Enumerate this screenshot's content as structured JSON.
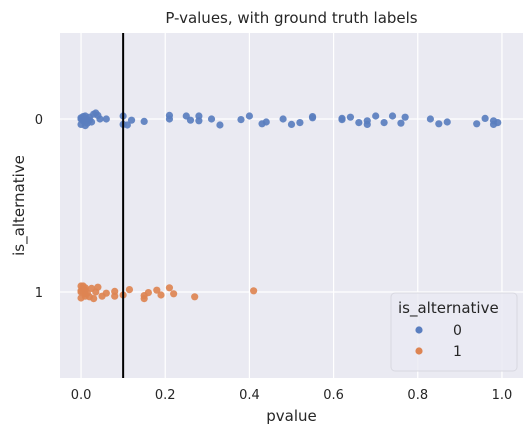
{
  "chart_data": {
    "type": "scatter",
    "title": "P-values, with ground truth labels",
    "xlabel": "pvalue",
    "ylabel": "is_alternative",
    "xlim": [
      -0.05,
      1.05
    ],
    "x_ticks": [
      "0.0",
      "0.2",
      "0.4",
      "0.6",
      "0.8",
      "1.0"
    ],
    "x_tick_values": [
      0.0,
      0.2,
      0.4,
      0.6,
      0.8,
      1.0
    ],
    "categories": [
      "0",
      "1"
    ],
    "grid": true,
    "background_color": "#eaeaf2",
    "vline": {
      "x": 0.1,
      "color": "#000000"
    },
    "legend": {
      "title": "is_alternative",
      "placement": "lower-right"
    },
    "series": [
      {
        "name": "0",
        "category": "0",
        "color": "#5a7ebf",
        "points": [
          {
            "x": 0.0,
            "y": 0.09
          },
          {
            "x": 0.01,
            "y": 0.11
          },
          {
            "x": 0.0,
            "y": -0.02
          },
          {
            "x": 0.005,
            "y": 0.03
          },
          {
            "x": 0.01,
            "y": -0.05
          },
          {
            "x": 0.015,
            "y": 0.07
          },
          {
            "x": 0.02,
            "y": 0.02
          },
          {
            "x": 0.02,
            "y": -0.03
          },
          {
            "x": 0.025,
            "y": 0.05
          },
          {
            "x": 0.03,
            "y": -0.08
          },
          {
            "x": 0.035,
            "y": -0.1
          },
          {
            "x": 0.04,
            "y": -0.06
          },
          {
            "x": 0.045,
            "y": 0.0
          },
          {
            "x": 0.06,
            "y": 0.0
          },
          {
            "x": 0.0,
            "y": 0.0
          },
          {
            "x": 0.005,
            "y": -0.04
          },
          {
            "x": 0.01,
            "y": 0.01
          },
          {
            "x": 0.1,
            "y": 0.09
          },
          {
            "x": 0.11,
            "y": 0.1
          },
          {
            "x": 0.1,
            "y": -0.05
          },
          {
            "x": 0.12,
            "y": 0.02
          },
          {
            "x": 0.15,
            "y": 0.04
          },
          {
            "x": 0.21,
            "y": 0.0
          },
          {
            "x": 0.21,
            "y": -0.06
          },
          {
            "x": 0.25,
            "y": -0.05
          },
          {
            "x": 0.26,
            "y": 0.02
          },
          {
            "x": 0.28,
            "y": -0.05
          },
          {
            "x": 0.28,
            "y": 0.03
          },
          {
            "x": 0.31,
            "y": 0.0
          },
          {
            "x": 0.33,
            "y": 0.1
          },
          {
            "x": 0.38,
            "y": 0.01
          },
          {
            "x": 0.4,
            "y": -0.05
          },
          {
            "x": 0.43,
            "y": 0.08
          },
          {
            "x": 0.44,
            "y": 0.05
          },
          {
            "x": 0.48,
            "y": 0.0
          },
          {
            "x": 0.5,
            "y": 0.09
          },
          {
            "x": 0.52,
            "y": 0.06
          },
          {
            "x": 0.55,
            "y": -0.02
          },
          {
            "x": 0.55,
            "y": -0.04
          },
          {
            "x": 0.62,
            "y": 0.01
          },
          {
            "x": 0.62,
            "y": -0.01
          },
          {
            "x": 0.64,
            "y": -0.03
          },
          {
            "x": 0.66,
            "y": 0.06
          },
          {
            "x": 0.68,
            "y": 0.09
          },
          {
            "x": 0.68,
            "y": 0.03
          },
          {
            "x": 0.7,
            "y": -0.05
          },
          {
            "x": 0.72,
            "y": 0.06
          },
          {
            "x": 0.74,
            "y": -0.05
          },
          {
            "x": 0.76,
            "y": 0.07
          },
          {
            "x": 0.77,
            "y": -0.03
          },
          {
            "x": 0.83,
            "y": 0.0
          },
          {
            "x": 0.85,
            "y": 0.08
          },
          {
            "x": 0.87,
            "y": 0.05
          },
          {
            "x": 0.94,
            "y": 0.08
          },
          {
            "x": 0.96,
            "y": -0.01
          },
          {
            "x": 0.98,
            "y": 0.03
          },
          {
            "x": 0.98,
            "y": 0.09
          },
          {
            "x": 0.99,
            "y": 0.06
          }
        ]
      },
      {
        "name": "1",
        "category": "1",
        "color": "#dd8452",
        "points": [
          {
            "x": 0.0,
            "y": -0.1
          },
          {
            "x": 0.005,
            "y": -0.06
          },
          {
            "x": 0.0,
            "y": -0.02
          },
          {
            "x": 0.01,
            "y": 0.03
          },
          {
            "x": 0.01,
            "y": 0.07
          },
          {
            "x": 0.0,
            "y": 0.1
          },
          {
            "x": 0.005,
            "y": -0.1
          },
          {
            "x": 0.01,
            "y": -0.07
          },
          {
            "x": 0.0,
            "y": 0.0
          },
          {
            "x": 0.01,
            "y": -0.03
          },
          {
            "x": 0.015,
            "y": 0.02
          },
          {
            "x": 0.02,
            "y": 0.08
          },
          {
            "x": 0.025,
            "y": -0.06
          },
          {
            "x": 0.03,
            "y": 0.11
          },
          {
            "x": 0.035,
            "y": 0.0
          },
          {
            "x": 0.04,
            "y": -0.08
          },
          {
            "x": 0.05,
            "y": 0.07
          },
          {
            "x": 0.06,
            "y": 0.02
          },
          {
            "x": 0.08,
            "y": -0.01
          },
          {
            "x": 0.08,
            "y": 0.07
          },
          {
            "x": 0.1,
            "y": 0.05
          },
          {
            "x": 0.115,
            "y": -0.04
          },
          {
            "x": 0.15,
            "y": 0.11
          },
          {
            "x": 0.15,
            "y": 0.06
          },
          {
            "x": 0.16,
            "y": 0.01
          },
          {
            "x": 0.18,
            "y": -0.03
          },
          {
            "x": 0.19,
            "y": 0.05
          },
          {
            "x": 0.21,
            "y": -0.07
          },
          {
            "x": 0.22,
            "y": 0.03
          },
          {
            "x": 0.27,
            "y": 0.08
          },
          {
            "x": 0.41,
            "y": -0.02
          }
        ]
      }
    ]
  }
}
